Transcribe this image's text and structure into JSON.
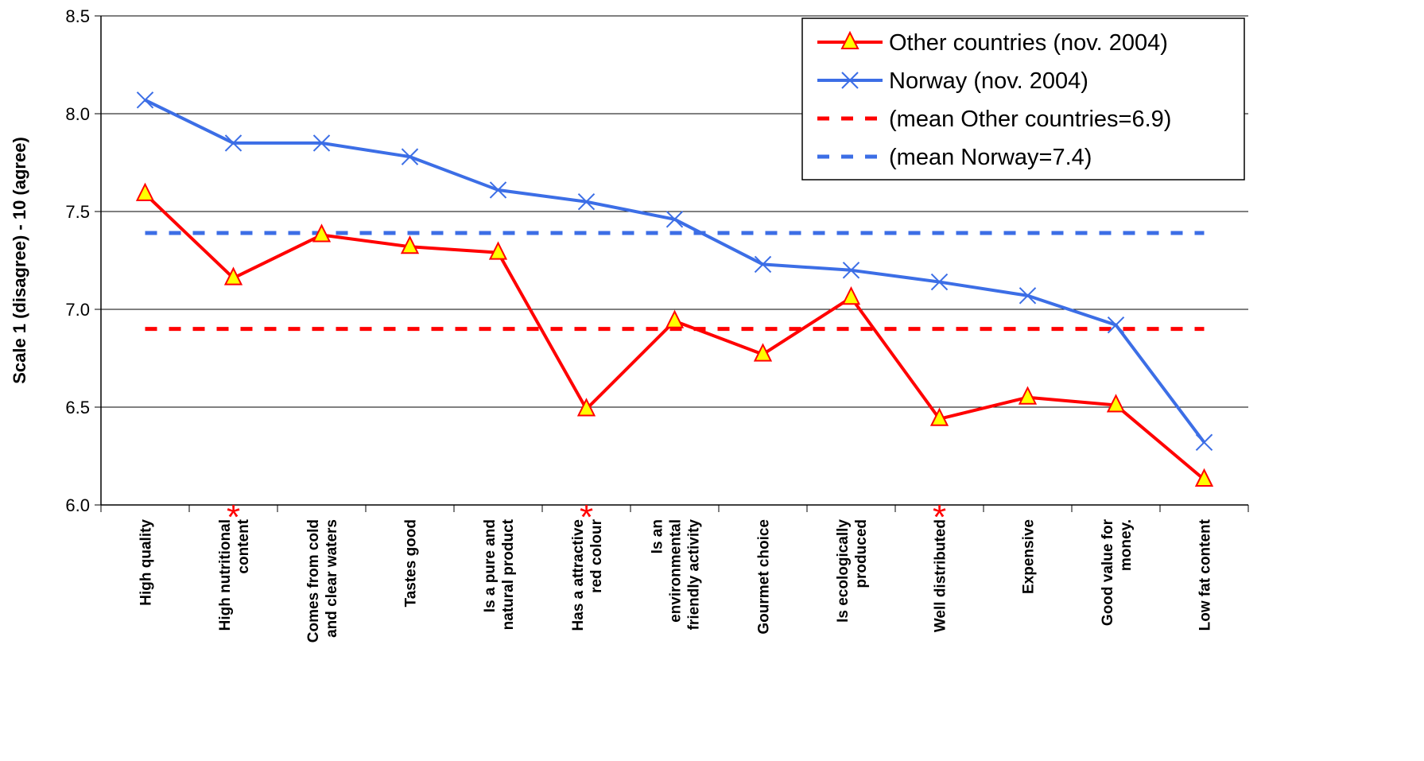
{
  "chart_data": {
    "type": "line",
    "title": "",
    "xlabel": "",
    "ylabel": "Scale 1 (disagree) - 10 (agree)",
    "ylim": [
      6.0,
      8.5
    ],
    "yticks": [
      "6.0",
      "6.5",
      "7.0",
      "7.5",
      "8.0",
      "8.5"
    ],
    "grid": "horizontal",
    "legend": "top-right",
    "categories": [
      [
        "High quality"
      ],
      [
        "High nutritional",
        "content"
      ],
      [
        "Comes from cold",
        "and clear waters"
      ],
      [
        "Tastes good"
      ],
      [
        "Is a pure and",
        "natural product"
      ],
      [
        "Has a attractive",
        "red colour"
      ],
      [
        "Is an",
        "environmental",
        "friendly activity"
      ],
      [
        "Gourmet choice"
      ],
      [
        "Is ecologically",
        "produced"
      ],
      [
        "Well distributed"
      ],
      [
        "Expensive"
      ],
      [
        "Good value for",
        "money."
      ],
      [
        "Low fat content"
      ]
    ],
    "significance_marker": "*",
    "significance_categories": [
      1,
      5,
      9
    ],
    "series": [
      {
        "name": "Other countries (nov. 2004)",
        "color": "#ff0000",
        "marker": "triangle",
        "marker_fill": "#ffff00",
        "style": "solid",
        "values": [
          7.59,
          7.16,
          7.38,
          7.32,
          7.29,
          6.49,
          6.94,
          6.77,
          7.06,
          6.44,
          6.55,
          6.51,
          6.13
        ]
      },
      {
        "name": "Norway (nov. 2004)",
        "color": "#3c6ee6",
        "marker": "x",
        "style": "solid",
        "values": [
          8.07,
          7.85,
          7.85,
          7.78,
          7.61,
          7.55,
          7.46,
          7.23,
          7.2,
          7.14,
          7.07,
          6.92,
          6.32
        ]
      },
      {
        "name": "(mean Other countries=6.9)",
        "color": "#ff0000",
        "style": "dashed",
        "constant": 6.9
      },
      {
        "name": "(mean Norway=7.4)",
        "color": "#3c6ee6",
        "style": "dashed",
        "constant": 7.39
      }
    ]
  }
}
